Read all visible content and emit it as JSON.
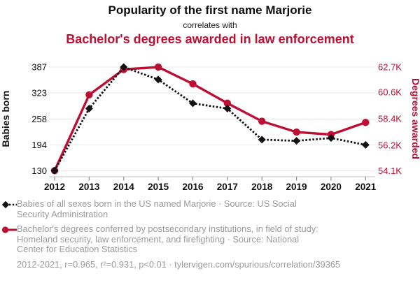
{
  "header": {
    "title": "Popularity of the first name Marjorie",
    "subtitle": "correlates with",
    "secondary_title": "Bachelor's degrees awarded in law enforcement"
  },
  "colors": {
    "accent_red": "#be0e33",
    "series_black": "#111111",
    "legend_gray": "#9b9b9b",
    "grid": "#e9e9e9",
    "axis_line": "#c9c9c9",
    "tick_mark": "#8f8f8f",
    "tick_text_dark": "#111111"
  },
  "chart_data": {
    "type": "line",
    "x": [
      "2012",
      "2013",
      "2014",
      "2015",
      "2016",
      "2017",
      "2018",
      "2019",
      "2020",
      "2021"
    ],
    "series": [
      {
        "id": "marjorie-babies",
        "name": "Babies of all sexes born in the US named Marjorie",
        "axis": "left",
        "style": "dotted-diamond",
        "color": "#111111",
        "values": [
          130,
          284,
          387,
          356,
          297,
          284,
          207,
          204,
          211,
          194
        ]
      },
      {
        "id": "law-enforcement-degrees",
        "name": "Bachelor's degrees conferred in field of study: Homeland security, law enforcement, and firefighting",
        "axis": "right",
        "style": "solid-circle",
        "color": "#be0e33",
        "values": [
          54100,
          60400,
          62500,
          62700,
          61300,
          59700,
          58200,
          57300,
          57100,
          58100
        ]
      }
    ],
    "left_axis": {
      "label": "Babies born",
      "tick_labels": [
        "130",
        "194",
        "258",
        "323",
        "387"
      ],
      "tick_values": [
        130,
        194,
        258,
        323,
        387
      ],
      "min": 130,
      "max": 387
    },
    "right_axis": {
      "label": "Degrees awarded",
      "tick_labels": [
        "54.1K",
        "56.2K",
        "58.4K",
        "60.6K",
        "62.7K"
      ],
      "tick_values": [
        54100,
        56200,
        58400,
        60600,
        62700
      ],
      "min": 54100,
      "max": 62700
    },
    "grid": "horizontal",
    "legend_position": "bottom"
  },
  "legend": {
    "items": [
      {
        "marker": "black-diamond-dotted",
        "text": "Babies of all sexes born in the US named Marjorie · Source: US Social Security Administration"
      },
      {
        "marker": "red-circle-solid",
        "text": "Bachelor's degrees conferred by postsecondary institutions, in field of study: Homeland security, law enforcement, and firefighting · Source: National Center for Education Statistics"
      }
    ]
  },
  "footer": {
    "text": "2012-2021, r=0.965, r²=0.931, p<0.01 · tylervigen.com/spurious/correlation/39365"
  }
}
